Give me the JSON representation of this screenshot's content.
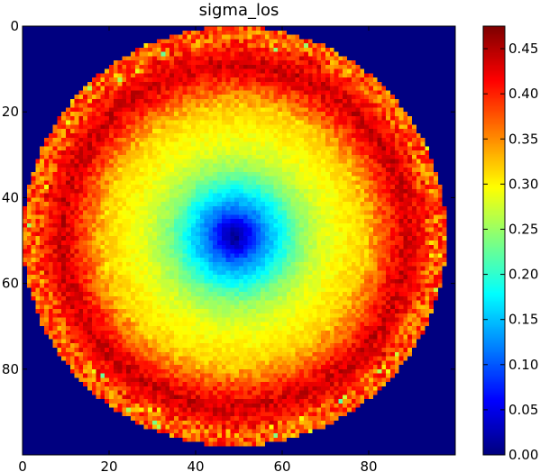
{
  "chart_data": {
    "type": "heatmap",
    "title": "sigma_los",
    "xlabel": "",
    "ylabel": "",
    "grid": false,
    "colormap": "jet",
    "x_range": [
      0,
      100
    ],
    "y_range": [
      0,
      100
    ],
    "x_ticks": [
      0,
      20,
      40,
      60,
      80
    ],
    "y_ticks": [
      0,
      20,
      40,
      60,
      80
    ],
    "y_axis_inverted": true,
    "background_value": 0.0,
    "center": [
      49,
      49
    ],
    "outer_disk_radius": 49,
    "radial_profile": {
      "radius": [
        0,
        3,
        6,
        10,
        15,
        20,
        25,
        30,
        34,
        37,
        40,
        44,
        46,
        49
      ],
      "value": [
        0.0,
        0.05,
        0.11,
        0.17,
        0.24,
        0.28,
        0.3,
        0.32,
        0.37,
        0.41,
        0.44,
        0.4,
        0.37,
        0.38
      ]
    },
    "colorbar": {
      "min": 0.0,
      "max": 0.475,
      "ticks": [
        0.0,
        0.05,
        0.1,
        0.15,
        0.2,
        0.25,
        0.3,
        0.35,
        0.4,
        0.45
      ],
      "tick_labels": [
        "0.00",
        "0.05",
        "0.10",
        "0.15",
        "0.20",
        "0.25",
        "0.30",
        "0.35",
        "0.40",
        "0.45"
      ]
    },
    "colors": {
      "background": "#00007f",
      "frame": "#000000"
    }
  }
}
